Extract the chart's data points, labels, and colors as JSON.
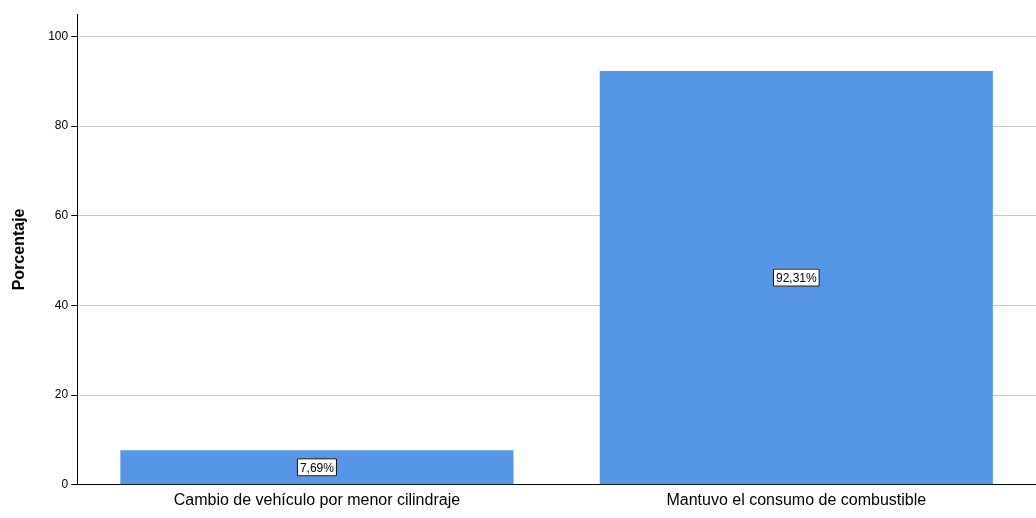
{
  "chart_data": {
    "type": "bar",
    "ylabel": "Porcentaje",
    "categories": [
      "Cambio de vehículo por menor cilindraje",
      "Mantuvo el consumo de combustible"
    ],
    "values": [
      7.69,
      92.31
    ],
    "color": "#5596e6",
    "value_labels": [
      "7,69%",
      "92,31%"
    ],
    "ylim": [
      0,
      105
    ],
    "yticks": [
      0,
      20,
      40,
      60,
      80,
      100
    ],
    "grid": "y",
    "legend": false
  }
}
